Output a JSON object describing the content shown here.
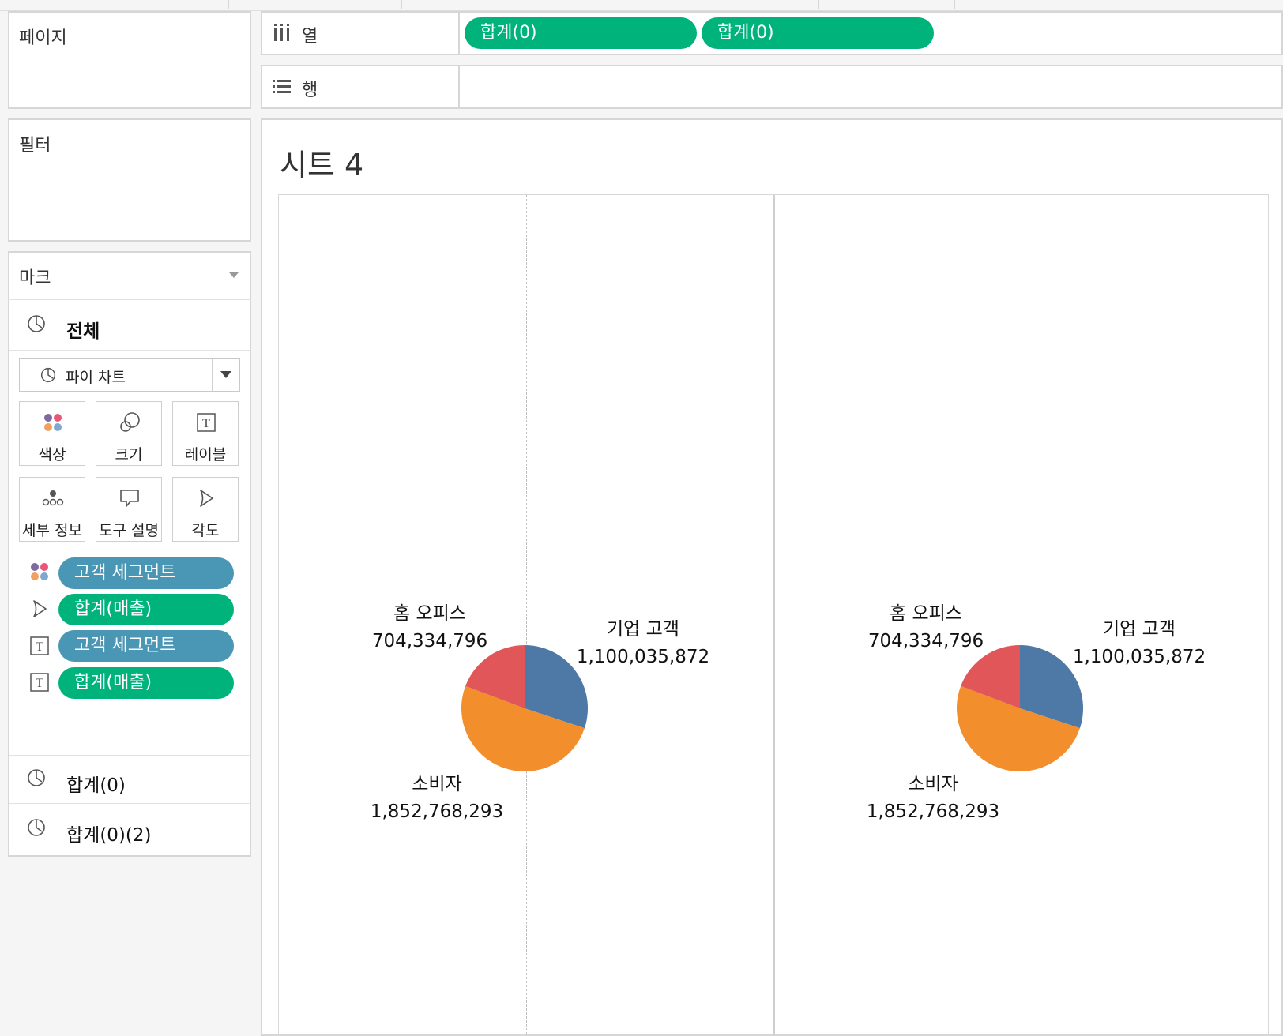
{
  "left_panels": {
    "pages_label": "페이지",
    "filters_label": "필터",
    "marks": {
      "title": "마크",
      "all_label": "전체",
      "mark_type": "파이 차트",
      "buttons": [
        {
          "label": "색상",
          "icon": "color-dots-icon"
        },
        {
          "label": "크기",
          "icon": "size-icon"
        },
        {
          "label": "레이블",
          "icon": "label-t-icon"
        },
        {
          "label": "세부 정보",
          "icon": "detail-dots-icon"
        },
        {
          "label": "도구 설명",
          "icon": "tooltip-icon"
        },
        {
          "label": "각도",
          "icon": "angle-icon"
        }
      ],
      "fields": [
        {
          "icon": "color-dots-icon",
          "label": "고객 세그먼트",
          "color": "#4a96b5"
        },
        {
          "icon": "angle-icon",
          "label": "합계(매출)",
          "color": "#00b37b"
        },
        {
          "icon": "label-t-icon",
          "label": "고객 세그먼트",
          "color": "#4a96b5"
        },
        {
          "icon": "label-t-icon",
          "label": "합계(매출)",
          "color": "#00b37b"
        }
      ],
      "sub_cards": [
        "합계(0)",
        "합계(0)(2)"
      ]
    }
  },
  "shelves": {
    "columns_label": "열",
    "columns_pills": [
      "합계(0)",
      "합계(0)"
    ],
    "rows_label": "행"
  },
  "sheet_title": "시트 4",
  "chart_data": [
    {
      "type": "pie",
      "slices": [
        {
          "label": "기업 고객",
          "value": 1100035872,
          "value_text": "1,100,035,872",
          "color": "#4e79a7"
        },
        {
          "label": "소비자",
          "value": 1852768293,
          "value_text": "1,852,768,293",
          "color": "#f28e2b"
        },
        {
          "label": "홈 오피스",
          "value": 704334796,
          "value_text": "704,334,796",
          "color": "#e15759"
        }
      ]
    },
    {
      "type": "pie",
      "slices": [
        {
          "label": "기업 고객",
          "value": 1100035872,
          "value_text": "1,100,035,872",
          "color": "#4e79a7"
        },
        {
          "label": "소비자",
          "value": 1852768293,
          "value_text": "1,852,768,293",
          "color": "#f28e2b"
        },
        {
          "label": "홈 오피스",
          "value": 704334796,
          "value_text": "704,334,796",
          "color": "#e15759"
        }
      ]
    }
  ]
}
